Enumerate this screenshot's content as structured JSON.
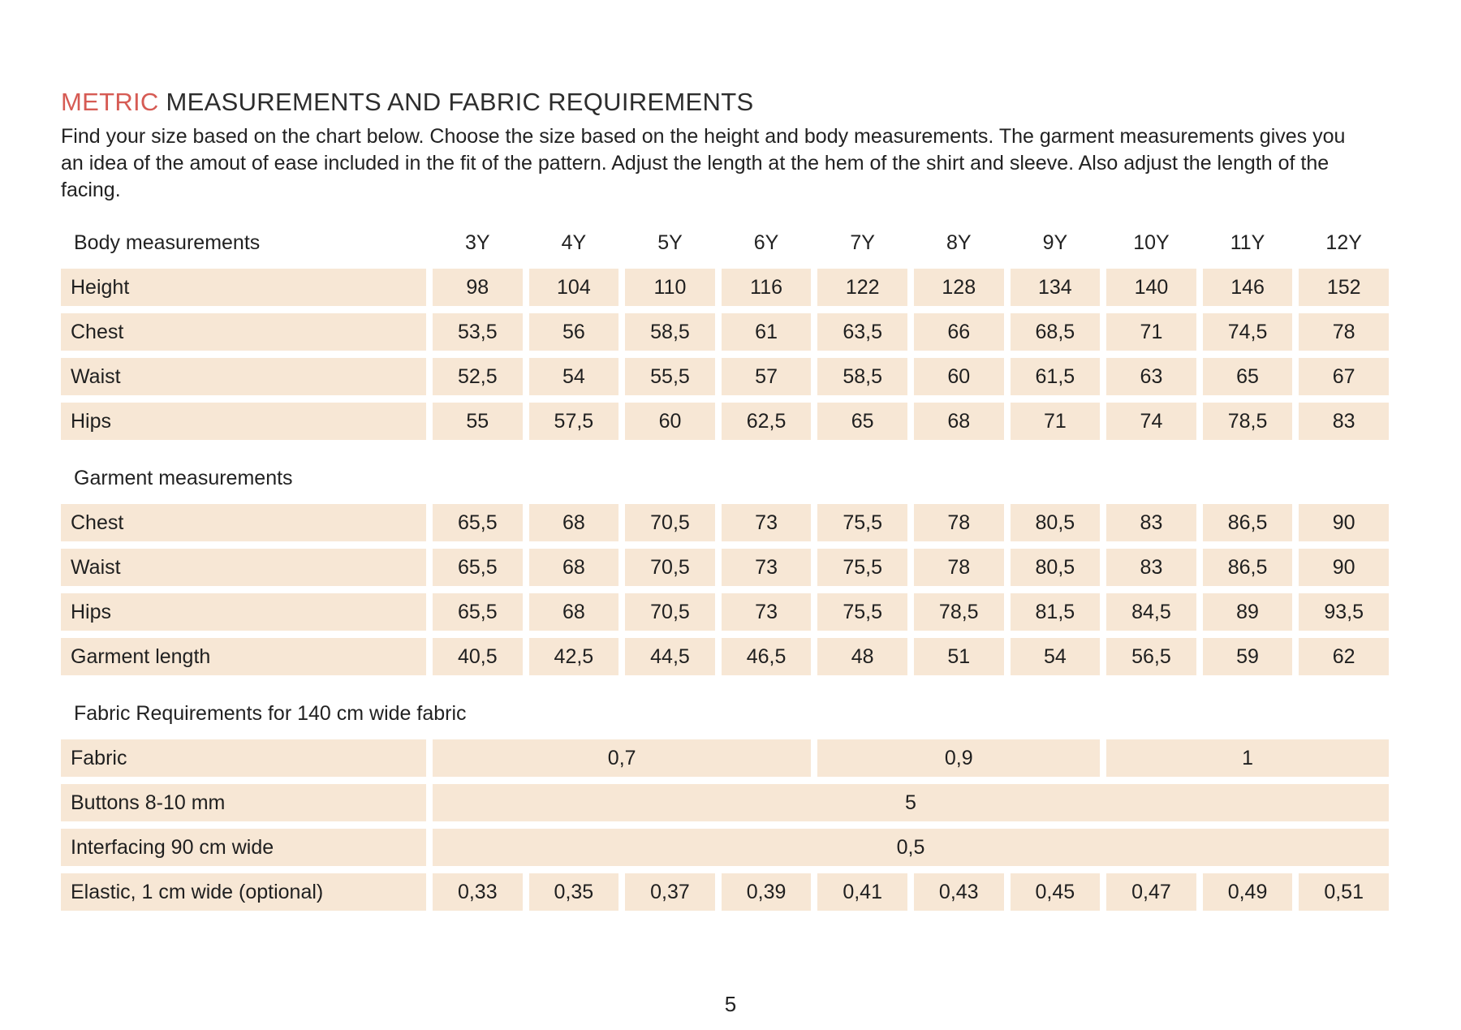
{
  "header": {
    "title_accent": "METRIC",
    "title_rest": " MEASUREMENTS AND FABRIC REQUIREMENTS",
    "intro": "Find your size based on the chart below. Choose the size based on the height and body measurements. The garment measurements gives you an idea of the amout of ease included in the fit of the pattern. Adjust the length at the hem of the shirt and sleeve. Also adjust the length of the facing."
  },
  "colors": {
    "accent_red": "#d65b54",
    "row_background": "#f7e7d5",
    "text": "#212121"
  },
  "table": {
    "sizes_header_label": "Body measurements",
    "sizes": [
      "3Y",
      "4Y",
      "5Y",
      "6Y",
      "7Y",
      "8Y",
      "9Y",
      "10Y",
      "11Y",
      "12Y"
    ],
    "body_rows": [
      {
        "label": "Height",
        "values": [
          "98",
          "104",
          "110",
          "116",
          "122",
          "128",
          "134",
          "140",
          "146",
          "152"
        ]
      },
      {
        "label": "Chest",
        "values": [
          "53,5",
          "56",
          "58,5",
          "61",
          "63,5",
          "66",
          "68,5",
          "71",
          "74,5",
          "78"
        ]
      },
      {
        "label": "Waist",
        "values": [
          "52,5",
          "54",
          "55,5",
          "57",
          "58,5",
          "60",
          "61,5",
          "63",
          "65",
          "67"
        ]
      },
      {
        "label": "Hips",
        "values": [
          "55",
          "57,5",
          "60",
          "62,5",
          "65",
          "68",
          "71",
          "74",
          "78,5",
          "83"
        ]
      }
    ],
    "garment_section_label": "Garment measurements",
    "garment_rows": [
      {
        "label": "Chest",
        "values": [
          "65,5",
          "68",
          "70,5",
          "73",
          "75,5",
          "78",
          "80,5",
          "83",
          "86,5",
          "90"
        ]
      },
      {
        "label": "Waist",
        "values": [
          "65,5",
          "68",
          "70,5",
          "73",
          "75,5",
          "78",
          "80,5",
          "83",
          "86,5",
          "90"
        ]
      },
      {
        "label": "Hips",
        "values": [
          "65,5",
          "68",
          "70,5",
          "73",
          "75,5",
          "78,5",
          "81,5",
          "84,5",
          "89",
          "93,5"
        ]
      },
      {
        "label": "Garment length",
        "values": [
          "40,5",
          "42,5",
          "44,5",
          "46,5",
          "48",
          "51",
          "54",
          "56,5",
          "59",
          "62"
        ]
      }
    ],
    "fabric_section_label": "Fabric Requirements for 140 cm wide fabric",
    "fabric_rows": [
      {
        "label": "Fabric",
        "cells": [
          {
            "value": "0,7",
            "span": 4
          },
          {
            "value": "0,9",
            "span": 3
          },
          {
            "value": "1",
            "span": 3
          }
        ]
      },
      {
        "label": "Buttons 8-10 mm",
        "cells": [
          {
            "value": "5",
            "span": 10
          }
        ]
      },
      {
        "label": "Interfacing 90 cm wide",
        "cells": [
          {
            "value": "0,5",
            "span": 10
          }
        ]
      },
      {
        "label": "Elastic, 1 cm wide (optional)",
        "cells": [
          {
            "value": "0,33",
            "span": 1
          },
          {
            "value": "0,35",
            "span": 1
          },
          {
            "value": "0,37",
            "span": 1
          },
          {
            "value": "0,39",
            "span": 1
          },
          {
            "value": "0,41",
            "span": 1
          },
          {
            "value": "0,43",
            "span": 1
          },
          {
            "value": "0,45",
            "span": 1
          },
          {
            "value": "0,47",
            "span": 1
          },
          {
            "value": "0,49",
            "span": 1
          },
          {
            "value": "0,51",
            "span": 1
          }
        ]
      }
    ]
  },
  "footer": {
    "page_number": "5"
  }
}
